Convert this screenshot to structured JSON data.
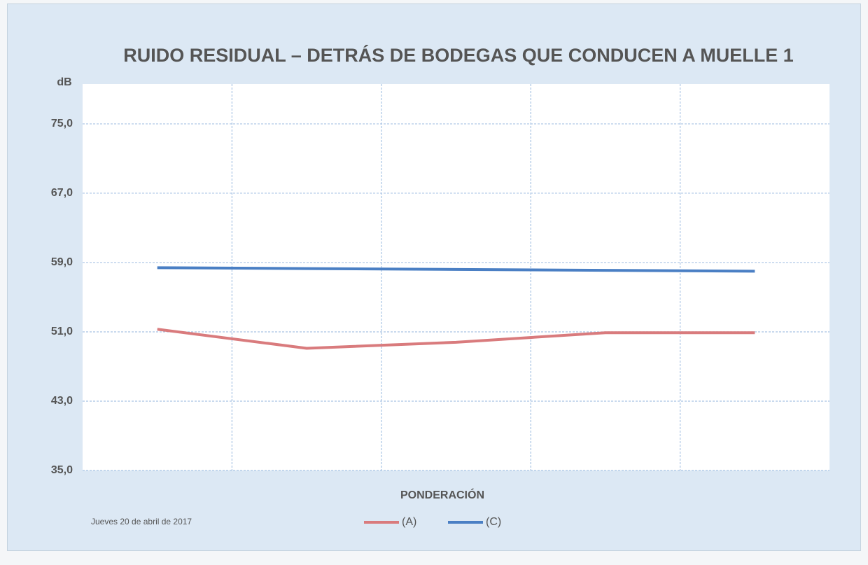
{
  "chart_data": {
    "type": "line",
    "title": "RUIDO RESIDUAL – DETRÁS DE BODEGAS QUE CONDUCEN A MUELLE 1",
    "y_label": "dB",
    "x_label": "PONDERACIÓN",
    "note": "Jueves 20 de abril de 2017",
    "categories": [
      null,
      null,
      null,
      null,
      null
    ],
    "series": [
      {
        "name": "(A)",
        "color": "#d97b7d",
        "values": [
          51.3,
          49.1,
          49.8,
          50.9,
          50.9
        ]
      },
      {
        "name": "(C)",
        "color": "#4a7fc4",
        "values": [
          58.4,
          58.3,
          58.2,
          58.1,
          58.0
        ]
      }
    ],
    "ylim": [
      35,
      79.6
    ],
    "yticks": [
      {
        "value": 35,
        "label": "35,0"
      },
      {
        "value": 43,
        "label": "43,0"
      },
      {
        "value": 51,
        "label": "51,0"
      },
      {
        "value": 59,
        "label": "59,0"
      },
      {
        "value": 67,
        "label": "67,0"
      },
      {
        "value": 75,
        "label": "75,0"
      }
    ],
    "grid": true,
    "legend": "bottom"
  }
}
